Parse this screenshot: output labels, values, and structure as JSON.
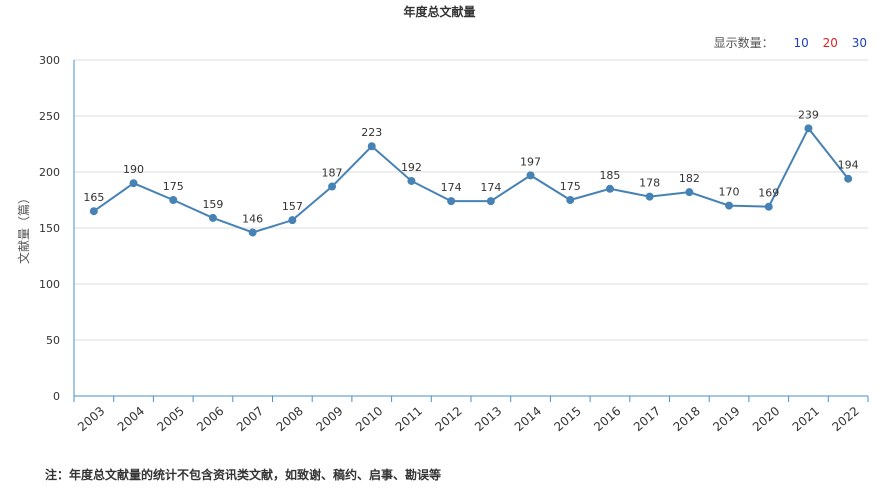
{
  "chart_data": {
    "type": "line",
    "title": "年度总文献量",
    "ylabel": "文献量（篇）",
    "xlabel": "",
    "ylim": [
      0,
      300
    ],
    "yticks": [
      0,
      50,
      100,
      150,
      200,
      250,
      300
    ],
    "grid": true,
    "categories": [
      "2003",
      "2004",
      "2005",
      "2006",
      "2007",
      "2008",
      "2009",
      "2010",
      "2011",
      "2012",
      "2013",
      "2014",
      "2015",
      "2016",
      "2017",
      "2018",
      "2019",
      "2020",
      "2021",
      "2022"
    ],
    "series": [
      {
        "values": [
          165,
          190,
          175,
          159,
          146,
          157,
          187,
          223,
          192,
          174,
          174,
          197,
          175,
          185,
          178,
          182,
          170,
          169,
          239,
          194
        ],
        "color": "#4682b4"
      }
    ]
  },
  "count_selector": {
    "label": "显示数量：",
    "options": [
      {
        "label": "10",
        "color": "#1f3fbf"
      },
      {
        "label": "20",
        "color": "#e02020"
      },
      {
        "label": "30",
        "color": "#1f3fbf"
      }
    ]
  },
  "footnote": "注：年度总文献量的统计不包含资讯类文献，如致谢、稿约、启事、勘误等"
}
